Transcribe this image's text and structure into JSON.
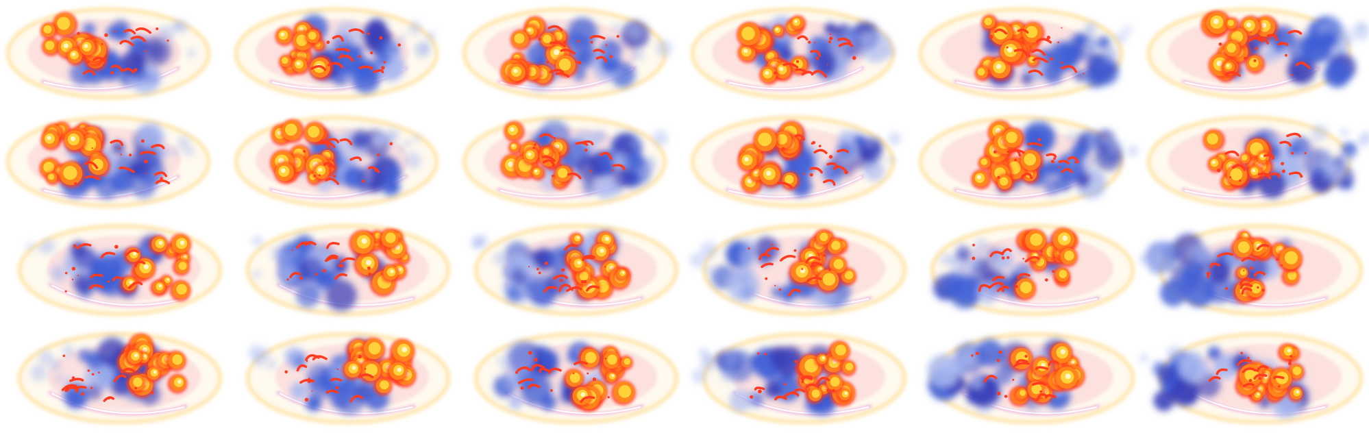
{
  "sprite_sheet": {
    "rows": 4,
    "columns": 6,
    "frame_count": 24,
    "background": "#ffffff",
    "palette": {
      "halo_outer": "#ffe6b0",
      "halo_inner": "#fff4e0",
      "rim_pink": "#f7b7c4",
      "rim_magenta": "#e9a0d8",
      "smoke_blue": "#3f5fd6",
      "smoke_deep": "#3a3fb8",
      "smoke_light": "#a9b8f0",
      "flame_red": "#ff3b1f",
      "flame_orange": "#ff8a1a",
      "flame_yellow": "#ffd23a",
      "flame_core": "#fff4c8"
    },
    "row_facing": [
      "left",
      "left",
      "right",
      "right"
    ]
  }
}
